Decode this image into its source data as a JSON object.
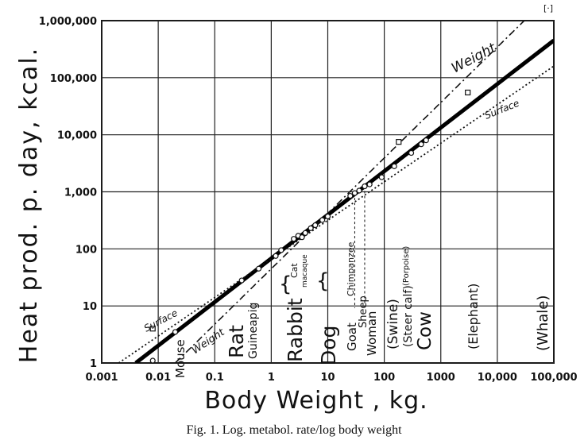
{
  "caption": "Fig. 1.  Log.  metabol. rate/log body weight",
  "corner_mark": "[·]",
  "chart_data": {
    "type": "scatter",
    "title": "",
    "xlabel": "Body Weight , kg.",
    "ylabel": "Heat prod. p. day, kcal.",
    "x_scale": "log",
    "y_scale": "log",
    "xlim": [
      0.001,
      100000
    ],
    "ylim": [
      1,
      1000000
    ],
    "grid": true,
    "x_ticks": [
      "0.001",
      "0.01",
      "0.1",
      "1",
      "10",
      "100",
      "1000",
      "10,000",
      "100,000"
    ],
    "y_ticks": [
      "1",
      "10",
      "100",
      "1,000",
      "10,000",
      "100,000",
      "1,000,000"
    ],
    "series": [
      {
        "name": "",
        "style": "solid-thick",
        "x": [
          0.004,
          100000
        ],
        "y": [
          1,
          450000
        ]
      },
      {
        "name": "Weight",
        "style": "dash-dot",
        "x": [
          0.02,
          30000
        ],
        "y": [
          1,
          1000000
        ]
      },
      {
        "name": "Surface",
        "style": "dotted",
        "x": [
          0.002,
          100000
        ],
        "y": [
          1,
          160000
        ]
      }
    ],
    "points": [
      {
        "x": 0.008,
        "y": 1.1
      },
      {
        "x": 0.02,
        "y": 3.5
      },
      {
        "x": 0.3,
        "y": 28
      },
      {
        "x": 0.6,
        "y": 45
      },
      {
        "x": 1.2,
        "y": 75
      },
      {
        "x": 1.5,
        "y": 95
      },
      {
        "x": 2.5,
        "y": 150
      },
      {
        "x": 3,
        "y": 170
      },
      {
        "x": 3.5,
        "y": 160
      },
      {
        "x": 4,
        "y": 190
      },
      {
        "x": 5,
        "y": 230
      },
      {
        "x": 6,
        "y": 260
      },
      {
        "x": 8,
        "y": 320
      },
      {
        "x": 10,
        "y": 370
      },
      {
        "x": 25,
        "y": 850
      },
      {
        "x": 30,
        "y": 950
      },
      {
        "x": 36,
        "y": 1050
      },
      {
        "x": 45,
        "y": 1250
      },
      {
        "x": 55,
        "y": 1350
      },
      {
        "x": 90,
        "y": 1800
      },
      {
        "x": 150,
        "y": 2800
      },
      {
        "x": 300,
        "y": 4800
      },
      {
        "x": 450,
        "y": 6800
      },
      {
        "x": 550,
        "y": 8000
      }
    ],
    "outlier_points": [
      {
        "x": 0.008,
        "y": 4
      },
      {
        "x": 180,
        "y": 7500
      },
      {
        "x": 3000,
        "y": 55000
      }
    ],
    "line_labels": [
      "Weight",
      "Surface"
    ],
    "annotations": [
      "Mouse",
      "Rat",
      "Guineapig",
      "Rabbit",
      "Cat",
      "macaque",
      "Dog",
      "Chimpanzee",
      "Goat",
      "Sheep",
      "Woman",
      "(Swine)",
      "(Steer calf)",
      "(Porpoise)",
      "Cow",
      "(Elephant)",
      "(Whale)"
    ]
  }
}
